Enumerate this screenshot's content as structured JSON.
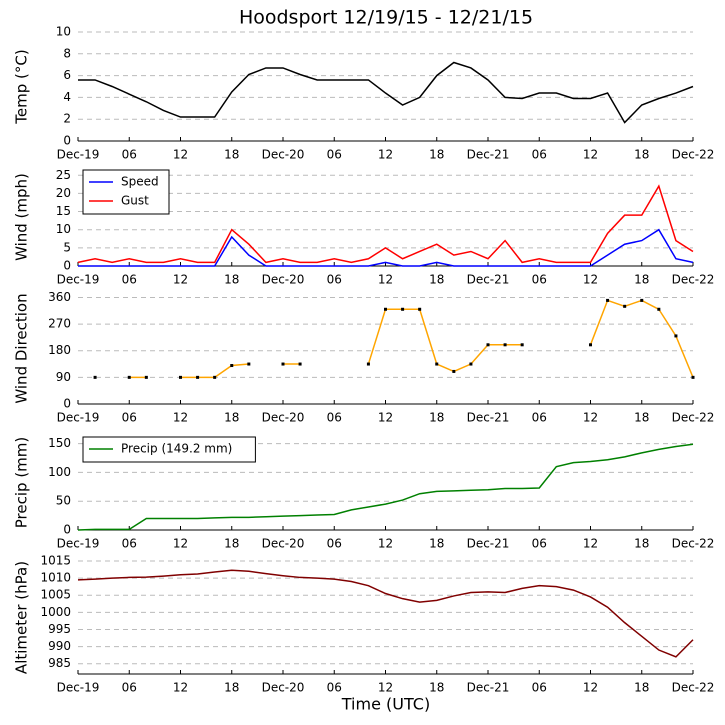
{
  "chart_data": [
    {
      "type": "line",
      "title": "Hoodsport 12/19/15 - 12/21/15",
      "ylabel": "Temp (°C)",
      "x": [
        0,
        2,
        4,
        6,
        8,
        10,
        12,
        14,
        16,
        18,
        20,
        22,
        24,
        26,
        28,
        30,
        32,
        34,
        36,
        38,
        40,
        42,
        44,
        46,
        48,
        50,
        52,
        54,
        56,
        58,
        60,
        62,
        64,
        66,
        68,
        70,
        72
      ],
      "series": [
        {
          "color": "#000000",
          "values": [
            5.6,
            5.6,
            5,
            4.3,
            3.6,
            2.8,
            2.2,
            2.2,
            2.2,
            4.5,
            6.1,
            6.7,
            6.7,
            6.1,
            5.6,
            5.6,
            5.6,
            5.6,
            4.4,
            3.3,
            4,
            6,
            7.2,
            6.7,
            5.6,
            4,
            3.9,
            4.4,
            4.4,
            3.9,
            3.9,
            4.4,
            1.7,
            3.3,
            3.9,
            4.4,
            5
          ]
        }
      ],
      "xlim": [
        0,
        72
      ],
      "xticks": [
        {
          "value": 0,
          "label": "Dec-19"
        },
        {
          "value": 6,
          "label": "06"
        },
        {
          "value": 12,
          "label": "12"
        },
        {
          "value": 18,
          "label": "18"
        },
        {
          "value": 24,
          "label": "Dec-20"
        },
        {
          "value": 30,
          "label": "06"
        },
        {
          "value": 36,
          "label": "12"
        },
        {
          "value": 42,
          "label": "18"
        },
        {
          "value": 48,
          "label": "Dec-21"
        },
        {
          "value": 54,
          "label": "06"
        },
        {
          "value": 60,
          "label": "12"
        },
        {
          "value": 66,
          "label": "18"
        },
        {
          "value": 72,
          "label": "Dec-22"
        }
      ],
      "ylim": [
        0,
        10
      ],
      "yticks": [
        0,
        2,
        4,
        6,
        8,
        10
      ],
      "grid": true
    },
    {
      "type": "line",
      "ylabel": "Wind (mph)",
      "legend": "upper left",
      "x": [
        0,
        2,
        4,
        6,
        8,
        10,
        12,
        14,
        16,
        18,
        20,
        22,
        24,
        26,
        28,
        30,
        32,
        34,
        36,
        38,
        40,
        42,
        44,
        46,
        48,
        50,
        52,
        54,
        56,
        58,
        60,
        62,
        64,
        66,
        68,
        70,
        72
      ],
      "series": [
        {
          "name": "Speed",
          "color": "#0000ff",
          "values": [
            0,
            0,
            0,
            0,
            0,
            0,
            0,
            0,
            0,
            8,
            3,
            0,
            0,
            0,
            0,
            0,
            0,
            0,
            1,
            0,
            0,
            1,
            0,
            0,
            0,
            0,
            0,
            0,
            0,
            0,
            0,
            3,
            6,
            7,
            10,
            2,
            1
          ]
        },
        {
          "name": "Gust",
          "color": "#ff0000",
          "values": [
            1,
            2,
            1,
            2,
            1,
            1,
            2,
            1,
            1,
            10,
            6,
            1,
            2,
            1,
            1,
            2,
            1,
            2,
            5,
            2,
            4,
            6,
            3,
            4,
            2,
            7,
            1,
            2,
            1,
            1,
            1,
            9,
            14,
            14,
            22,
            7,
            4
          ]
        }
      ],
      "xlim": [
        0,
        72
      ],
      "xticks": [
        {
          "value": 0,
          "label": "Dec-19"
        },
        {
          "value": 6,
          "label": "06"
        },
        {
          "value": 12,
          "label": "12"
        },
        {
          "value": 18,
          "label": "18"
        },
        {
          "value": 24,
          "label": "Dec-20"
        },
        {
          "value": 30,
          "label": "06"
        },
        {
          "value": 36,
          "label": "12"
        },
        {
          "value": 42,
          "label": "18"
        },
        {
          "value": 48,
          "label": "Dec-21"
        },
        {
          "value": 54,
          "label": "06"
        },
        {
          "value": 60,
          "label": "12"
        },
        {
          "value": 66,
          "label": "18"
        },
        {
          "value": 72,
          "label": "Dec-22"
        }
      ],
      "ylim": [
        0,
        27
      ],
      "yticks": [
        0,
        5,
        10,
        15,
        20,
        25
      ],
      "grid": true
    },
    {
      "type": "line",
      "ylabel": "Wind Direction",
      "markers": true,
      "x": [
        0,
        2,
        4,
        6,
        8,
        10,
        12,
        14,
        16,
        18,
        20,
        22,
        24,
        26,
        28,
        30,
        32,
        34,
        36,
        38,
        40,
        42,
        44,
        46,
        48,
        50,
        52,
        54,
        56,
        58,
        60,
        62,
        64,
        66,
        68,
        70,
        72
      ],
      "series": [
        {
          "color": "#ffa500",
          "values": [
            null,
            90,
            null,
            90,
            90,
            null,
            90,
            90,
            90,
            130,
            135,
            null,
            135,
            135,
            null,
            null,
            null,
            135,
            320,
            320,
            320,
            135,
            110,
            135,
            200,
            200,
            200,
            null,
            null,
            null,
            200,
            350,
            330,
            350,
            320,
            230,
            90
          ]
        }
      ],
      "xlim": [
        0,
        72
      ],
      "xticks": [
        {
          "value": 0,
          "label": "Dec-19"
        },
        {
          "value": 6,
          "label": "06"
        },
        {
          "value": 12,
          "label": "12"
        },
        {
          "value": 18,
          "label": "18"
        },
        {
          "value": 24,
          "label": "Dec-20"
        },
        {
          "value": 30,
          "label": "06"
        },
        {
          "value": 36,
          "label": "12"
        },
        {
          "value": 42,
          "label": "18"
        },
        {
          "value": 48,
          "label": "Dec-21"
        },
        {
          "value": 54,
          "label": "06"
        },
        {
          "value": 60,
          "label": "12"
        },
        {
          "value": 66,
          "label": "18"
        },
        {
          "value": 72,
          "label": "Dec-22"
        }
      ],
      "ylim": [
        0,
        375
      ],
      "yticks": [
        0,
        90,
        180,
        270,
        360
      ],
      "grid": true
    },
    {
      "type": "line",
      "ylabel": "Precip (mm)",
      "legend": "upper left",
      "x": [
        0,
        2,
        4,
        6,
        8,
        10,
        12,
        14,
        16,
        18,
        20,
        22,
        24,
        26,
        28,
        30,
        32,
        34,
        36,
        38,
        40,
        42,
        44,
        46,
        48,
        50,
        52,
        54,
        56,
        58,
        60,
        62,
        64,
        66,
        68,
        70,
        72
      ],
      "series": [
        {
          "name": "Precip (149.2 mm)",
          "color": "#008000",
          "values": [
            0,
            1,
            1,
            1,
            20,
            20,
            20,
            20,
            21,
            22,
            22,
            23,
            24,
            25,
            26,
            27,
            35,
            40,
            45,
            52,
            63,
            67,
            68,
            69,
            70,
            72,
            72,
            73,
            110,
            117,
            119,
            122,
            127,
            134,
            140,
            145,
            149
          ]
        }
      ],
      "xlim": [
        0,
        72
      ],
      "xticks": [
        {
          "value": 0,
          "label": "Dec-19"
        },
        {
          "value": 6,
          "label": "06"
        },
        {
          "value": 12,
          "label": "12"
        },
        {
          "value": 18,
          "label": "18"
        },
        {
          "value": 24,
          "label": "Dec-20"
        },
        {
          "value": 30,
          "label": "06"
        },
        {
          "value": 36,
          "label": "12"
        },
        {
          "value": 42,
          "label": "18"
        },
        {
          "value": 48,
          "label": "Dec-21"
        },
        {
          "value": 54,
          "label": "06"
        },
        {
          "value": 60,
          "label": "12"
        },
        {
          "value": 66,
          "label": "18"
        },
        {
          "value": 72,
          "label": "Dec-22"
        }
      ],
      "ylim": [
        0,
        165
      ],
      "yticks": [
        0,
        50,
        100,
        150
      ],
      "grid": true
    },
    {
      "type": "line",
      "ylabel": "Altimeter (hPa)",
      "xlabel": "Time (UTC)",
      "x": [
        0,
        2,
        4,
        6,
        8,
        10,
        12,
        14,
        16,
        18,
        20,
        22,
        24,
        26,
        28,
        30,
        32,
        34,
        36,
        38,
        40,
        42,
        44,
        46,
        48,
        50,
        52,
        54,
        56,
        58,
        60,
        62,
        64,
        66,
        68,
        70,
        72
      ],
      "series": [
        {
          "color": "#800000",
          "values": [
            1009.5,
            1009.7,
            1010,
            1010.2,
            1010.3,
            1010.6,
            1011,
            1011.2,
            1011.8,
            1012.3,
            1012,
            1011.3,
            1010.7,
            1010.2,
            1010,
            1009.7,
            1009,
            1007.8,
            1005.5,
            1004,
            1003,
            1003.5,
            1004.8,
            1005.8,
            1006,
            1005.8,
            1007,
            1007.8,
            1007.5,
            1006.5,
            1004.5,
            1001.5,
            997,
            993,
            989,
            987,
            992
          ]
        }
      ],
      "xlim": [
        0,
        72
      ],
      "xticks": [
        {
          "value": 0,
          "label": "Dec-19"
        },
        {
          "value": 6,
          "label": "06"
        },
        {
          "value": 12,
          "label": "12"
        },
        {
          "value": 18,
          "label": "18"
        },
        {
          "value": 24,
          "label": "Dec-20"
        },
        {
          "value": 30,
          "label": "06"
        },
        {
          "value": 36,
          "label": "12"
        },
        {
          "value": 42,
          "label": "18"
        },
        {
          "value": 48,
          "label": "Dec-21"
        },
        {
          "value": 54,
          "label": "06"
        },
        {
          "value": 60,
          "label": "12"
        },
        {
          "value": 66,
          "label": "18"
        },
        {
          "value": 72,
          "label": "Dec-22"
        }
      ],
      "ylim": [
        982,
        1015
      ],
      "yticks": [
        985,
        990,
        995,
        1000,
        1005,
        1010,
        1015
      ],
      "grid": true
    }
  ]
}
